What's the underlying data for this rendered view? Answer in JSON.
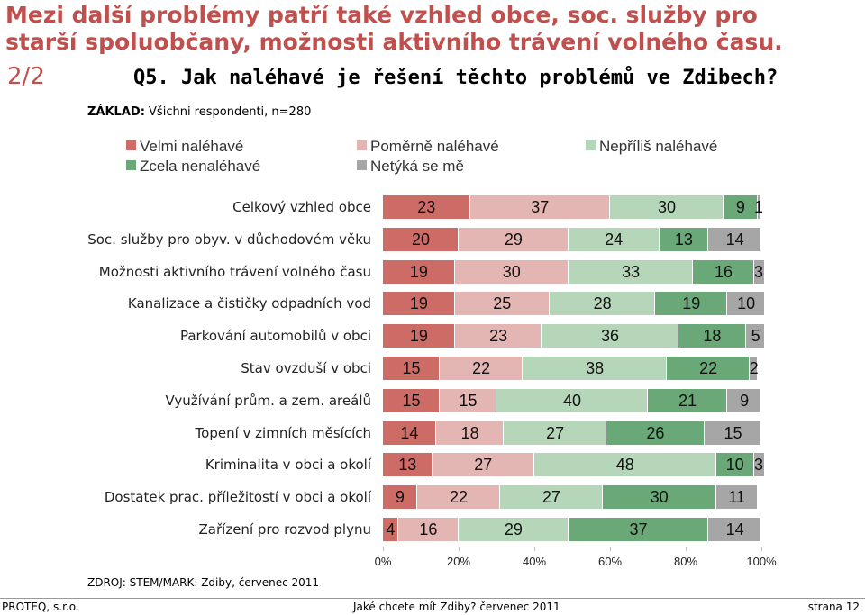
{
  "header": {
    "title_line1": "Mezi další problémy patří také vzhled obce, soc. služby pro",
    "title_line2": "starší spoluobčany, možnosti aktivního trávení volného času.",
    "page_label": "2/2",
    "question": "Q5. Jak naléhavé je řešení těchto problémů ve Zdibech?",
    "base_label": "ZÁKLAD:",
    "base_text": " Všichni respondenti, n=280"
  },
  "colors": {
    "velmi": "#cd6b67",
    "pomerne": "#e4b6b3",
    "nepriliš": "#b5d6b8",
    "zcela": "#6aa877",
    "netyka": "#a6a6a6"
  },
  "chart_data": {
    "type": "bar",
    "orientation": "horizontal",
    "stacked": true,
    "xlim": [
      0,
      100
    ],
    "x_ticks": [
      "0%",
      "20%",
      "40%",
      "60%",
      "80%",
      "100%"
    ],
    "categories": [
      "Celkový vzhled obce",
      "Soc. služby pro obyv. v důchodovém věku",
      "Možnosti aktivního trávení volného času",
      "Kanalizace a čističky odpadních vod",
      "Parkování automobilů v obci",
      "Stav ovzduší v obci",
      "Využívání prům. a zem. areálů",
      "Topení v zimních měsících",
      "Kriminalita v obci a okolí",
      "Dostatek prac. příležitostí v obci a okolí",
      "Zařízení pro rozvod plynu"
    ],
    "series": [
      {
        "name": "Velmi naléhavé",
        "color_key": "velmi",
        "values": [
          23,
          20,
          19,
          19,
          19,
          15,
          15,
          14,
          13,
          9,
          4
        ]
      },
      {
        "name": "Poměrně naléhavé",
        "color_key": "pomerne",
        "values": [
          37,
          29,
          30,
          25,
          23,
          22,
          15,
          18,
          27,
          22,
          16
        ]
      },
      {
        "name": "Nepříliš naléhavé",
        "color_key": "nepriliš",
        "values": [
          30,
          24,
          33,
          28,
          36,
          38,
          40,
          27,
          48,
          27,
          29
        ]
      },
      {
        "name": "Zcela nenaléhavé",
        "color_key": "zcela",
        "values": [
          9,
          13,
          16,
          19,
          18,
          22,
          21,
          26,
          10,
          30,
          37
        ]
      },
      {
        "name": "Netýká se mě",
        "color_key": "netyka",
        "values": [
          1,
          14,
          3,
          10,
          5,
          2,
          9,
          15,
          3,
          11,
          14
        ]
      }
    ],
    "legend_position": "top"
  },
  "footer": {
    "source": "ZDROJ: STEM/MARK: Zdiby, červenec 2011",
    "left": "PROTEQ, s.r.o.",
    "center": "Jaké chcete mít Zdiby? červenec 2011",
    "right": "strana 12"
  }
}
